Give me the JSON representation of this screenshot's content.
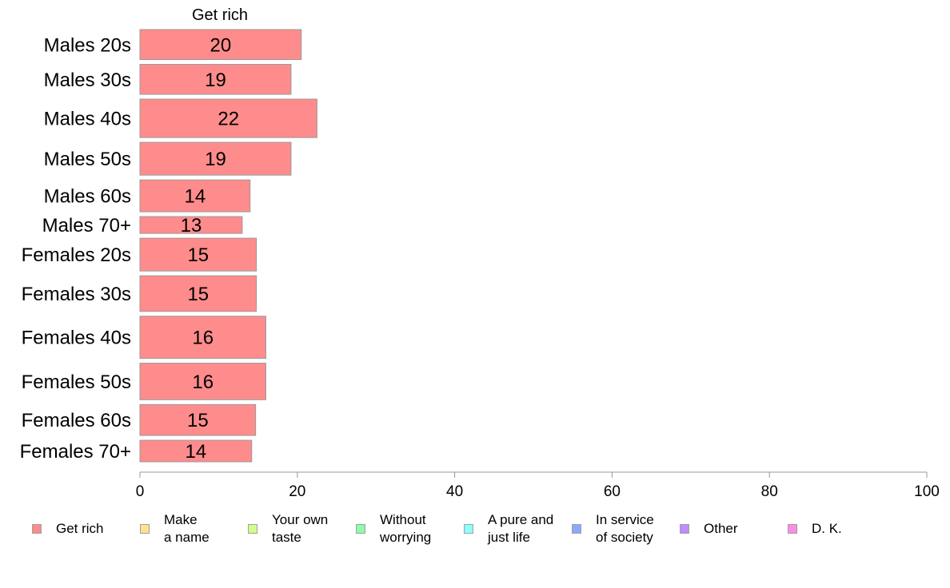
{
  "chart_data": {
    "type": "bar",
    "orientation": "horizontal",
    "column_header": "Get rich",
    "categories": [
      "Males 20s",
      "Males 30s",
      "Males 40s",
      "Males 50s",
      "Males 60s",
      "Males 70+",
      "Females 20s",
      "Females 30s",
      "Females 40s",
      "Females 50s",
      "Females 60s",
      "Females 70+"
    ],
    "series": [
      {
        "name": "Get rich",
        "values": [
          20.5,
          19.2,
          22.5,
          19.2,
          14.0,
          13.0,
          14.8,
          14.8,
          16.0,
          16.0,
          14.7,
          14.2
        ],
        "labels": [
          "20",
          "19",
          "22",
          "19",
          "14",
          "13",
          "15",
          "15",
          "16",
          "16",
          "15",
          "14"
        ]
      }
    ],
    "row_weights": [
      37,
      37,
      46,
      40,
      39,
      23,
      40,
      43,
      50,
      44,
      38,
      28
    ],
    "xlim": [
      0,
      100
    ],
    "xticks": [
      "0",
      "20",
      "40",
      "60",
      "80",
      "100"
    ],
    "xlabel": "",
    "ylabel": "",
    "grid": false,
    "legend": {
      "placement": "bottom",
      "items": [
        {
          "label": "Get rich",
          "color": "#FF8C8C"
        },
        {
          "label": "Make\na name",
          "color": "#FFE38C"
        },
        {
          "label": "Your own\ntaste",
          "color": "#D2FF8C"
        },
        {
          "label": "Without\nworrying",
          "color": "#8CFFA8"
        },
        {
          "label": "A pure and\njust life",
          "color": "#8CFFFF"
        },
        {
          "label": "In service\nof society",
          "color": "#8CA8FF"
        },
        {
          "label": "Other",
          "color": "#C08CFF"
        },
        {
          "label": "D. K.",
          "color": "#FF8CE3"
        }
      ]
    },
    "colors": {
      "bar": "#FF8C8C",
      "bar_border": "#999999",
      "axis": "#999999"
    }
  }
}
